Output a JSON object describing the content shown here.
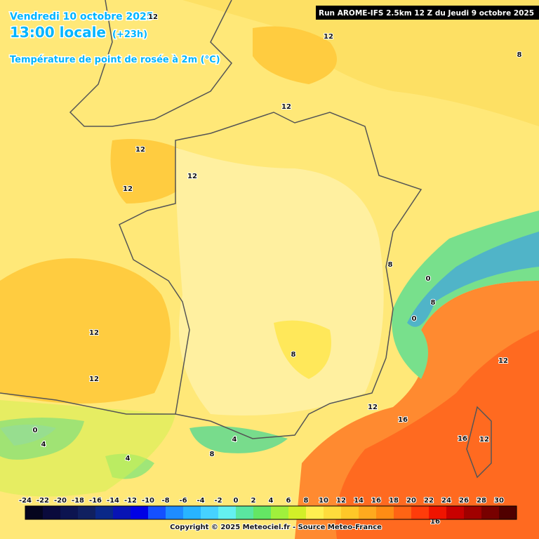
{
  "header": {
    "date": "Vendredi 10 octobre 2025",
    "time": "13:00 locale",
    "offset": "(+23h)",
    "title": "Température de point de rosée à 2m (°C)"
  },
  "run": "Run AROME-IFS 2.5km 12 Z du Jeudi 9 octobre 2025",
  "contour_labels": [
    "12",
    "12",
    "12",
    "12",
    "12",
    "12",
    "8",
    "8",
    "0",
    "8",
    "0",
    "8",
    "12",
    "12",
    "12",
    "12",
    "16",
    "16",
    "12",
    "0",
    "4",
    "4",
    "4",
    "8",
    "16"
  ],
  "legend": {
    "ticks": [
      -24,
      -22,
      -20,
      -18,
      -16,
      -14,
      -12,
      -10,
      -8,
      -6,
      -4,
      -2,
      0,
      2,
      4,
      6,
      8,
      10,
      12,
      14,
      16,
      18,
      20,
      22,
      24,
      26,
      28,
      30
    ],
    "colors": [
      "#05051e",
      "#0a0a3c",
      "#0c1450",
      "#102060",
      "#0a2888",
      "#0814b4",
      "#0000e6",
      "#1450ff",
      "#1e8cff",
      "#28b4ff",
      "#46d2ff",
      "#64f0f0",
      "#5ae6a0",
      "#64e664",
      "#a0f03c",
      "#d2f028",
      "#fff050",
      "#ffdc3c",
      "#ffc828",
      "#ffaa1e",
      "#ff8c14",
      "#ff6414",
      "#ff3c0a",
      "#f01400",
      "#c80000",
      "#a00000",
      "#780000",
      "#500000"
    ]
  },
  "copyright": "Copyright © 2025 Meteociel.fr - Source Meteo-France"
}
